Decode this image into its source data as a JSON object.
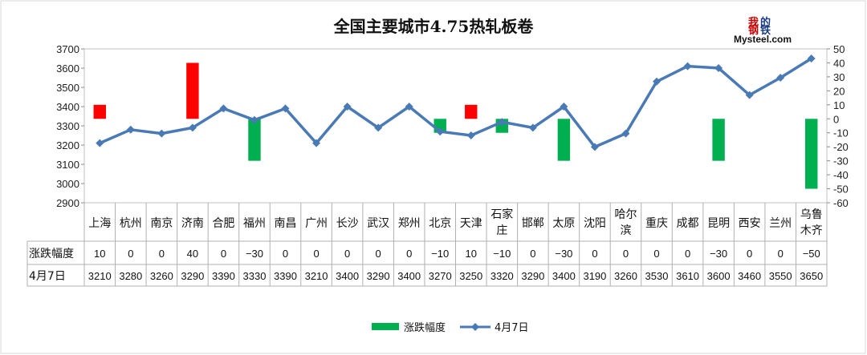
{
  "chart_data": {
    "type": "bar+line",
    "title": "全国主要城市4.75热轧板卷",
    "categories": [
      "上海",
      "杭州",
      "南京",
      "济南",
      "合肥",
      "福州",
      "南昌",
      "广州",
      "长沙",
      "武汉",
      "郑州",
      "北京",
      "天津",
      "石家庄",
      "邯郸",
      "太原",
      "沈阳",
      "哈尔滨",
      "重庆",
      "成都",
      "昆明",
      "西安",
      "兰州",
      "乌鲁木齐"
    ],
    "series": [
      {
        "name": "涨跌幅度",
        "type": "bar",
        "axis": "right",
        "values": [
          10,
          0,
          0,
          40,
          0,
          -30,
          0,
          0,
          0,
          0,
          0,
          -10,
          10,
          -10,
          0,
          -30,
          0,
          0,
          0,
          0,
          -30,
          0,
          0,
          -50
        ],
        "display": [
          "10",
          "0",
          "0",
          "40",
          "0",
          "−30",
          "0",
          "0",
          "0",
          "0",
          "0",
          "−10",
          "10",
          "−10",
          "0",
          "−30",
          "0",
          "0",
          "0",
          "0",
          "−30",
          "0",
          "0",
          "−50"
        ]
      },
      {
        "name": "4月7日",
        "type": "line",
        "axis": "left",
        "values": [
          3210,
          3280,
          3260,
          3290,
          3390,
          3330,
          3390,
          3210,
          3400,
          3290,
          3400,
          3270,
          3250,
          3320,
          3290,
          3400,
          3190,
          3260,
          3530,
          3610,
          3600,
          3460,
          3550,
          3650
        ]
      }
    ],
    "left_axis": {
      "min": 2900,
      "max": 3700,
      "step": 100,
      "ticks": [
        "2900",
        "3000",
        "3100",
        "3200",
        "3300",
        "3400",
        "3500",
        "3600",
        "3700"
      ]
    },
    "right_axis": {
      "min": -60,
      "max": 50,
      "step": 10,
      "ticks": [
        "-60",
        "-50",
        "-40",
        "-30",
        "-20",
        "-10",
        "0",
        "10",
        "20",
        "30",
        "40",
        "50"
      ]
    },
    "colors": {
      "up": "#ff0000",
      "down": "#00b050",
      "line": "#4a7ab5",
      "legend_bar": "#00b050"
    },
    "legend_placement": "bottom"
  },
  "logo": {
    "cn1": "我",
    "cn2": "的",
    "cn3": "钢",
    "cn4": "铁",
    "en": "Mysteel.com"
  }
}
